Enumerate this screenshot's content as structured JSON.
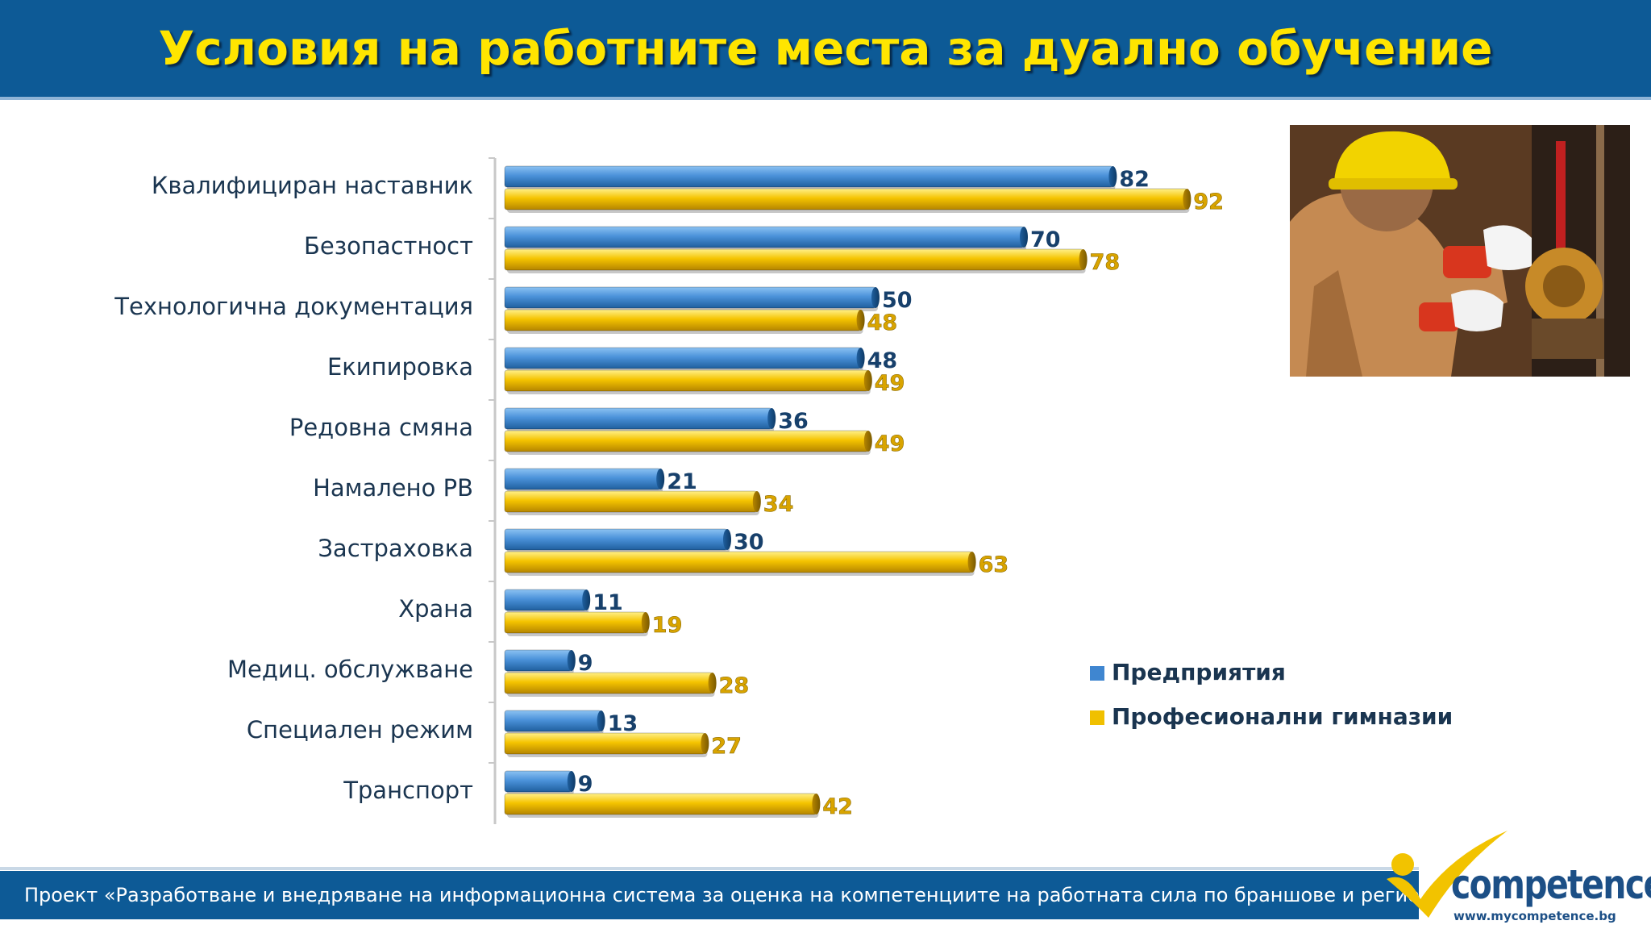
{
  "slide": {
    "title": "Условия на работните места за дуално обучение",
    "footer": "Проект «Разработване и внедряване на информационна система за оценка на компетенциите на работната сила по браншове и региони»",
    "logo_text": "competence",
    "logo_url": "www.mycompetence.bg"
  },
  "colors": {
    "header": "#0d5a96",
    "title": "#ffe500",
    "series_blue": "#3f86d0",
    "series_yellow": "#f0c000",
    "label_blue": "#17406b",
    "label_yellow": "#d9a400"
  },
  "chart_data": {
    "type": "bar",
    "orientation": "horizontal",
    "title": "",
    "xlabel": "",
    "ylabel": "",
    "xlim": [
      0,
      100
    ],
    "grid": false,
    "legend_position": "right",
    "categories": [
      "Квалифициран наставник",
      "Безопастност",
      "Технологична документация",
      "Екипировка",
      "Редовна смяна",
      "Намалено РВ",
      "Застраховка",
      "Храна",
      "Медиц. обслужване",
      "Специален режим",
      "Транспорт"
    ],
    "series": [
      {
        "name": "Предприятия",
        "values": [
          82,
          70,
          50,
          48,
          36,
          21,
          30,
          11,
          9,
          13,
          9
        ]
      },
      {
        "name": "Професионални гимназии",
        "values": [
          92,
          78,
          48,
          49,
          49,
          34,
          63,
          19,
          28,
          27,
          42
        ]
      }
    ]
  }
}
